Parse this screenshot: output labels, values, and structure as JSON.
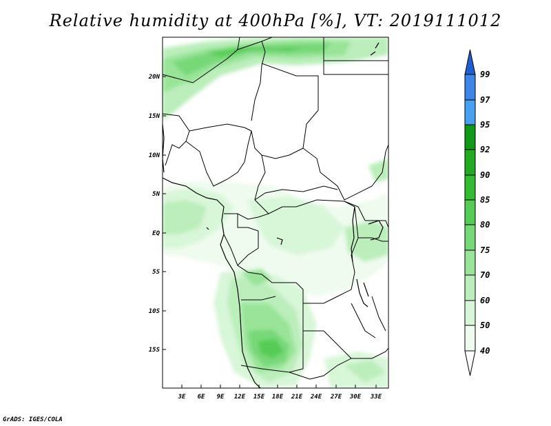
{
  "title": "Relative humidity at 400hPa [%], VT: 2019111012",
  "credit": "GrADS: IGES/COLA",
  "map": {
    "lat_labels": [
      "20N",
      "15N",
      "10N",
      "5N",
      "EQ",
      "5S",
      "10S",
      "15S"
    ],
    "lon_labels": [
      "3E",
      "6E",
      "9E",
      "12E",
      "15E",
      "18E",
      "21E",
      "24E",
      "27E",
      "30E",
      "33E"
    ]
  },
  "colorbar": {
    "levels": [
      "99",
      "97",
      "95",
      "92",
      "90",
      "85",
      "80",
      "75",
      "70",
      "60",
      "50",
      "40"
    ],
    "colors": [
      "#2266d8",
      "#3d86e8",
      "#4aa0f0",
      "#119a1a",
      "#22aa22",
      "#33bb33",
      "#55cc55",
      "#77d877",
      "#99e499",
      "#bbeebb",
      "#d8f6d8",
      "#eefbee"
    ],
    "bottom_color": "#ffffff",
    "top_arrow_color": "#1f5fcf"
  }
}
